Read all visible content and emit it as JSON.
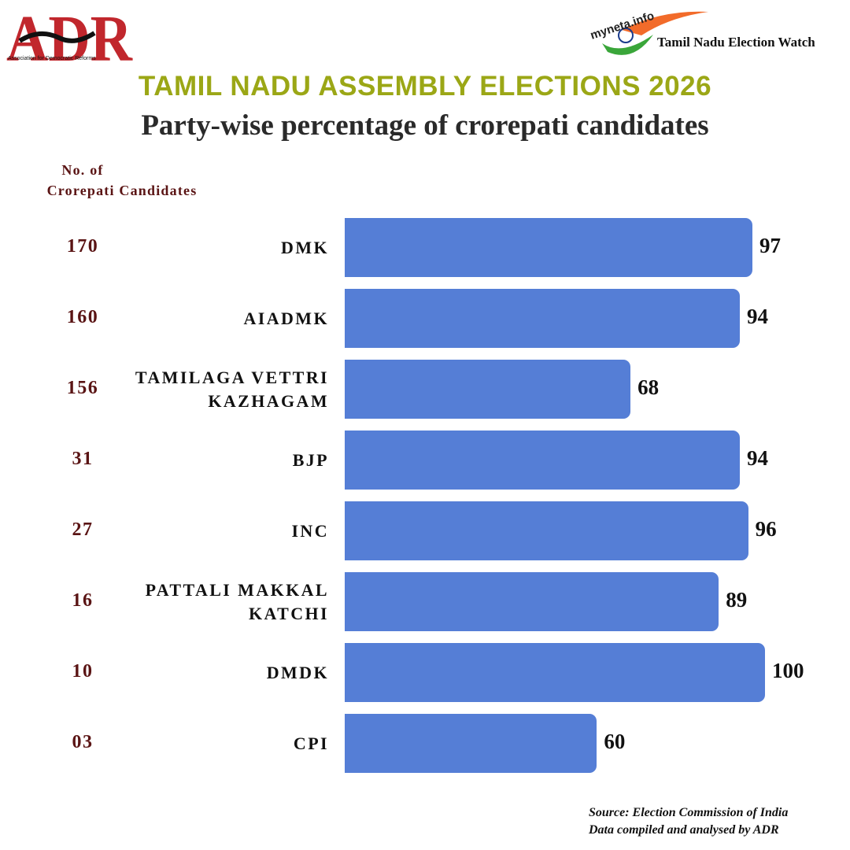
{
  "header": {
    "logo_text": "ADR",
    "logo_subtitle": "Association for Democratic Reforms",
    "partner_logo": "myneta.info",
    "partner_name": "Tamil Nadu Election Watch"
  },
  "chart_data": {
    "type": "bar",
    "orientation": "horizontal",
    "title": "TAMIL NADU ASSEMBLY ELECTIONS 2026",
    "subtitle": "Party-wise percentage of crorepati candidates",
    "count_header": [
      "No. of",
      "Crorepati Candidates"
    ],
    "categories": [
      "DMK",
      "AIADMK",
      "TAMILAGA VETTRI KAZHAGAM",
      "BJP",
      "INC",
      "PATTALI MAKKAL KATCHI",
      "DMDK",
      "CPI"
    ],
    "candidate_counts": [
      "170",
      "160",
      "156",
      "31",
      "27",
      "16",
      "10",
      "03"
    ],
    "values": [
      97,
      94,
      68,
      94,
      96,
      89,
      100,
      60
    ],
    "color": "#557ed6",
    "xlim": [
      0,
      100
    ]
  },
  "footer": {
    "source": "Source: Election Commission of India",
    "note": "Data compiled and analysed by ADR"
  }
}
